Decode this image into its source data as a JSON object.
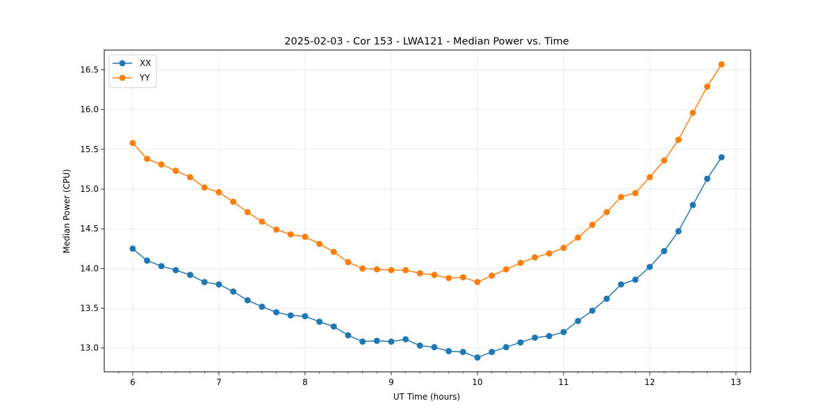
{
  "chart_data": {
    "type": "line",
    "title": "2025-02-03 - Cor 153 - LWA121 - Median Power vs. Time",
    "xlabel": "UT Time (hours)",
    "ylabel": "Median Power (CPU)",
    "xlim": [
      5.67,
      13.17
    ],
    "ylim": [
      12.7,
      16.75
    ],
    "xticks": [
      6,
      7,
      8,
      9,
      10,
      11,
      12,
      13
    ],
    "yticks": [
      13.0,
      13.5,
      14.0,
      14.5,
      15.0,
      15.5,
      16.0,
      16.5
    ],
    "ytick_labels": [
      "13.0",
      "13.5",
      "14.0",
      "14.5",
      "15.0",
      "15.5",
      "16.0",
      "16.5"
    ],
    "grid": true,
    "legend_position": "top-left",
    "x": [
      6.0,
      6.167,
      6.333,
      6.5,
      6.667,
      6.833,
      7.0,
      7.167,
      7.333,
      7.5,
      7.667,
      7.833,
      8.0,
      8.167,
      8.333,
      8.5,
      8.667,
      8.833,
      9.0,
      9.167,
      9.333,
      9.5,
      9.667,
      9.833,
      10.0,
      10.167,
      10.333,
      10.5,
      10.667,
      10.833,
      11.0,
      11.167,
      11.333,
      11.5,
      11.667,
      11.833,
      12.0,
      12.167,
      12.333,
      12.5,
      12.667,
      12.833
    ],
    "series": [
      {
        "name": "XX",
        "color": "#1f77b4",
        "values": [
          14.25,
          14.1,
          14.03,
          13.98,
          13.92,
          13.83,
          13.8,
          13.71,
          13.6,
          13.52,
          13.45,
          13.41,
          13.4,
          13.33,
          13.27,
          13.16,
          13.08,
          13.09,
          13.08,
          13.11,
          13.03,
          13.01,
          12.96,
          12.95,
          12.88,
          12.95,
          13.01,
          13.07,
          13.13,
          13.15,
          13.2,
          13.34,
          13.47,
          13.62,
          13.8,
          13.86,
          14.02,
          14.22,
          14.47,
          14.8,
          15.13,
          15.4
        ]
      },
      {
        "name": "YY",
        "color": "#ff7f0e",
        "values": [
          15.58,
          15.38,
          15.31,
          15.23,
          15.15,
          15.02,
          14.96,
          14.84,
          14.71,
          14.59,
          14.49,
          14.43,
          14.4,
          14.31,
          14.21,
          14.08,
          14.0,
          13.99,
          13.98,
          13.98,
          13.94,
          13.92,
          13.88,
          13.89,
          13.83,
          13.91,
          13.99,
          14.07,
          14.14,
          14.19,
          14.26,
          14.39,
          14.55,
          14.71,
          14.9,
          14.95,
          15.15,
          15.36,
          15.62,
          15.96,
          16.29,
          16.57
        ]
      }
    ]
  }
}
